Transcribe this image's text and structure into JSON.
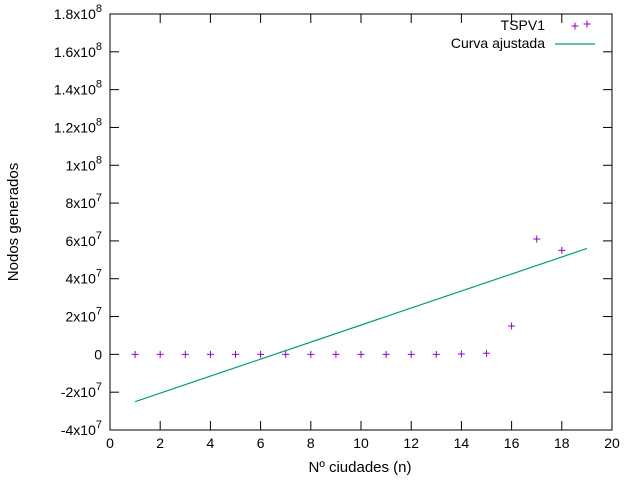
{
  "chart_data": {
    "type": "scatter",
    "title": "",
    "xlabel": "Nº ciudades (n)",
    "ylabel": "Nodos generados",
    "xlim": [
      0,
      20
    ],
    "ylim": [
      -40000000,
      180000000
    ],
    "x_ticks": [
      0,
      2,
      4,
      6,
      8,
      10,
      12,
      14,
      16,
      18,
      20
    ],
    "y_ticks": [
      {
        "value": -40000000,
        "mantissa": "-4x10",
        "exp": "7"
      },
      {
        "value": -20000000,
        "mantissa": "-2x10",
        "exp": "7"
      },
      {
        "value": 0,
        "mantissa": "0",
        "exp": ""
      },
      {
        "value": 20000000,
        "mantissa": "2x10",
        "exp": "7"
      },
      {
        "value": 40000000,
        "mantissa": "4x10",
        "exp": "7"
      },
      {
        "value": 60000000,
        "mantissa": "6x10",
        "exp": "7"
      },
      {
        "value": 80000000,
        "mantissa": "8x10",
        "exp": "7"
      },
      {
        "value": 100000000,
        "mantissa": "1x10",
        "exp": "8"
      },
      {
        "value": 120000000,
        "mantissa": "1.2x10",
        "exp": "8"
      },
      {
        "value": 140000000,
        "mantissa": "1.4x10",
        "exp": "8"
      },
      {
        "value": 160000000,
        "mantissa": "1.6x10",
        "exp": "8"
      },
      {
        "value": 180000000,
        "mantissa": "1.8x10",
        "exp": "8"
      }
    ],
    "grid": false,
    "legend_position": "top-right",
    "series": [
      {
        "name": "TSPV1",
        "kind": "points",
        "marker": "plus",
        "color": "#9400d3",
        "x": [
          1,
          2,
          3,
          4,
          5,
          6,
          7,
          8,
          9,
          10,
          11,
          12,
          13,
          14,
          15,
          16,
          17,
          18
        ],
        "y": [
          0,
          0,
          0,
          0,
          0,
          0,
          0,
          0,
          0,
          0,
          0,
          0,
          0,
          200000,
          600000,
          15000000,
          61000000,
          55000000
        ]
      },
      {
        "name": "Curva ajustada",
        "kind": "line",
        "color": "#009e73",
        "x": [
          1,
          19
        ],
        "y": [
          -25000000,
          56000000
        ]
      }
    ]
  }
}
